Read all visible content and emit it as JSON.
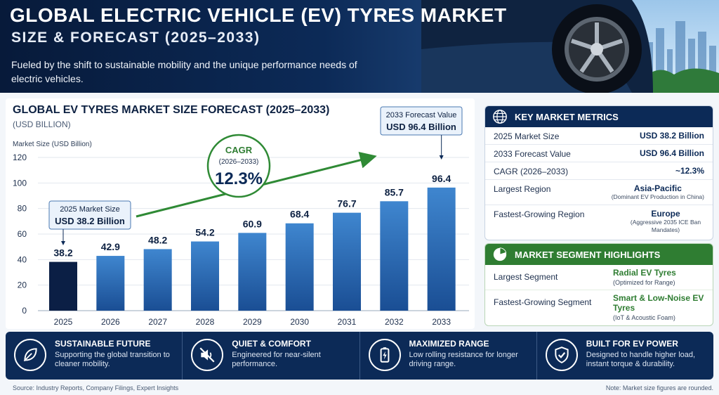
{
  "header": {
    "title": "GLOBAL ELECTRIC VEHICLE (EV) TYRES MARKET",
    "subtitle": "SIZE & FORECAST (2025–2033)",
    "description": "Fueled by the shift to sustainable mobility and the unique performance needs of electric vehicles."
  },
  "chart_data": {
    "type": "bar",
    "title": "GLOBAL EV TYRES MARKET SIZE FORECAST (2025–2033)",
    "unit": "(USD BILLION)",
    "ylabel": "Market Size (USD Billion)",
    "ylim": [
      0,
      120
    ],
    "yticks": [
      "0",
      "20",
      "40",
      "60",
      "80",
      "100",
      "120"
    ],
    "categories": [
      "2025",
      "2026",
      "2027",
      "2028",
      "2029",
      "2030",
      "2031",
      "2032",
      "2033"
    ],
    "values": [
      38.2,
      42.9,
      48.2,
      54.2,
      60.9,
      68.4,
      76.7,
      85.7,
      96.4
    ],
    "value_labels": [
      "38.2",
      "42.9",
      "48.2",
      "54.2",
      "60.9",
      "68.4",
      "76.7",
      "85.7",
      "96.4"
    ],
    "grid": true,
    "annotations": {
      "start": {
        "label": "2025 Market Size",
        "value": "USD 38.2 Billion"
      },
      "end": {
        "label": "2033 Forecast Value",
        "value": "USD 96.4 Billion"
      },
      "cagr": {
        "label": "CAGR",
        "period": "(2026–2033)",
        "value": "12.3%"
      }
    },
    "colors": {
      "first_bar": "#0b1f45",
      "bar_light": "#3f86cf",
      "bar_dark": "#1a4e94",
      "trend": "#2f8a35"
    }
  },
  "metrics": {
    "title": "KEY MARKET METRICS",
    "rows": [
      {
        "label": "2025 Market Size",
        "value": "USD 38.2 Billion",
        "note": ""
      },
      {
        "label": "2033 Forecast Value",
        "value": "USD 96.4 Billion",
        "note": ""
      },
      {
        "label": "CAGR (2026–2033)",
        "value": "~12.3%",
        "note": ""
      },
      {
        "label": "Largest Region",
        "value": "Asia-Pacific",
        "note": "(Dominant EV Production in China)"
      },
      {
        "label": "Fastest-Growing Region",
        "value": "Europe",
        "note": "(Aggressive 2035 ICE Ban Mandates)"
      }
    ]
  },
  "segments": {
    "title": "MARKET SEGMENT HIGHLIGHTS",
    "rows": [
      {
        "label": "Largest Segment",
        "value": "Radial EV Tyres",
        "note": "(Optimized for Range)"
      },
      {
        "label": "Fastest-Growing Segment",
        "value": "Smart & Low-Noise EV Tyres",
        "note": "(IoT & Acoustic Foam)"
      }
    ]
  },
  "features": [
    {
      "icon": "leaf-icon",
      "title": "SUSTAINABLE FUTURE",
      "desc": "Supporting the global transition to cleaner mobility."
    },
    {
      "icon": "mute-speaker-icon",
      "title": "QUIET & COMFORT",
      "desc": "Engineered for near-silent performance."
    },
    {
      "icon": "battery-icon",
      "title": "MAXIMIZED RANGE",
      "desc": "Low rolling resistance for longer driving range."
    },
    {
      "icon": "shield-check-icon",
      "title": "BUILT FOR EV POWER",
      "desc": "Designed to handle higher load, instant torque & durability."
    }
  ],
  "footer": {
    "source": "Source: Industry Reports, Company Filings, Expert Insights",
    "note": "Note: Market size figures are rounded."
  }
}
